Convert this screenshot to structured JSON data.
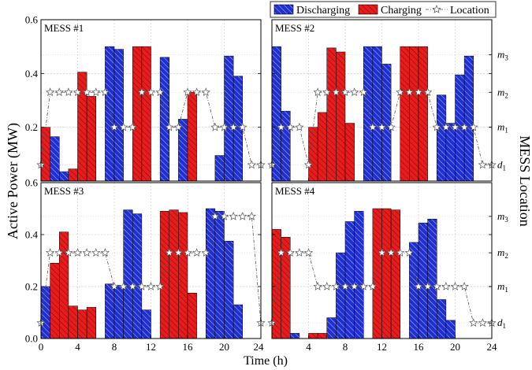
{
  "figure": {
    "ylabel_left": "Active Power (MW)",
    "ylabel_right": "MESS Location",
    "xlabel": "Time (h)",
    "legend": [
      {
        "key": "discharging",
        "label": "Discharging"
      },
      {
        "key": "charging",
        "label": "Charging"
      },
      {
        "key": "location",
        "label": "Location"
      }
    ]
  },
  "colors": {
    "discharging": "#1f2fd0",
    "charging": "#e81c1c",
    "location_line": "#555555",
    "grid": "#c8c8c8"
  },
  "chart_data": [
    {
      "type": "bar",
      "title": "MESS #1",
      "xlim": [
        0,
        24
      ],
      "ylim": [
        0,
        0.6
      ],
      "xticks": [
        0,
        4,
        8,
        12,
        16,
        20,
        24
      ],
      "yticks": [
        0.0,
        0.2,
        0.4,
        0.6
      ],
      "location_ticks": [
        "d1",
        "m1",
        "m2",
        "m3"
      ],
      "hours": [
        1,
        2,
        3,
        4,
        5,
        6,
        7,
        8,
        9,
        10,
        11,
        12,
        13,
        14,
        15,
        16,
        17,
        18,
        19,
        20,
        21,
        22,
        23,
        24
      ],
      "power": [
        0.2,
        0.165,
        0.035,
        0.045,
        0.405,
        0.315,
        0,
        0.5,
        0.49,
        0,
        0.5,
        0.5,
        0,
        0.46,
        0,
        0.23,
        0.33,
        0,
        0,
        0.095,
        0.465,
        0.39,
        0,
        0
      ],
      "mode": [
        "c",
        "d",
        "d",
        "c",
        "c",
        "c",
        "",
        "d",
        "d",
        "",
        "c",
        "c",
        "",
        "d",
        "",
        "d",
        "c",
        "",
        "",
        "d",
        "d",
        "d",
        "",
        ""
      ],
      "location": [
        [
          0,
          0.06
        ],
        [
          1,
          0.33
        ],
        [
          2,
          0.33
        ],
        [
          3,
          0.33
        ],
        [
          4,
          0.33
        ],
        [
          5,
          0.33
        ],
        [
          6,
          0.33
        ],
        [
          7,
          0.33
        ],
        [
          8,
          0.2
        ],
        [
          9,
          0.2
        ],
        [
          10,
          0.2
        ],
        [
          11,
          0.33
        ],
        [
          12,
          0.33
        ],
        [
          13,
          0.33
        ],
        [
          14,
          0.2
        ],
        [
          15,
          0.2
        ],
        [
          16,
          0.33
        ],
        [
          17,
          0.33
        ],
        [
          18,
          0.33
        ],
        [
          19,
          0.2
        ],
        [
          20,
          0.2
        ],
        [
          21,
          0.2
        ],
        [
          22,
          0.2
        ],
        [
          23,
          0.06
        ],
        [
          24,
          0.06
        ]
      ]
    },
    {
      "type": "bar",
      "title": "MESS #2",
      "xlim": [
        0,
        24
      ],
      "ylim": [
        0,
        0.6
      ],
      "xticks": [
        0,
        4,
        8,
        12,
        16,
        20,
        24
      ],
      "yticks": [
        0.0,
        0.2,
        0.4,
        0.6
      ],
      "location_ticks": [
        "d1",
        "m1",
        "m2",
        "m3"
      ],
      "hours": [
        1,
        2,
        3,
        4,
        5,
        6,
        7,
        8,
        9,
        10,
        11,
        12,
        13,
        14,
        15,
        16,
        17,
        18,
        19,
        20,
        21,
        22,
        23,
        24
      ],
      "power": [
        0.5,
        0.26,
        0,
        0,
        0.2,
        0.255,
        0.495,
        0.48,
        0.215,
        0,
        0.5,
        0.5,
        0.435,
        0,
        0.5,
        0.5,
        0.5,
        0,
        0.32,
        0.215,
        0.395,
        0.465,
        0,
        0
      ],
      "mode": [
        "d",
        "d",
        "",
        "",
        "c",
        "c",
        "c",
        "c",
        "c",
        "",
        "d",
        "d",
        "d",
        "",
        "c",
        "c",
        "c",
        "",
        "d",
        "d",
        "d",
        "d",
        "",
        ""
      ],
      "location": [
        [
          0,
          0.06
        ],
        [
          1,
          0.2
        ],
        [
          2,
          0.2
        ],
        [
          3,
          0.2
        ],
        [
          4,
          0.06
        ],
        [
          5,
          0.33
        ],
        [
          6,
          0.33
        ],
        [
          7,
          0.33
        ],
        [
          8,
          0.33
        ],
        [
          9,
          0.33
        ],
        [
          10,
          0.33
        ],
        [
          11,
          0.2
        ],
        [
          12,
          0.2
        ],
        [
          13,
          0.2
        ],
        [
          14,
          0.33
        ],
        [
          15,
          0.33
        ],
        [
          16,
          0.33
        ],
        [
          17,
          0.33
        ],
        [
          18,
          0.2
        ],
        [
          19,
          0.2
        ],
        [
          20,
          0.2
        ],
        [
          21,
          0.2
        ],
        [
          22,
          0.2
        ],
        [
          23,
          0.06
        ],
        [
          24,
          0.06
        ]
      ]
    },
    {
      "type": "bar",
      "title": "MESS #3",
      "xlim": [
        0,
        24
      ],
      "ylim": [
        0,
        0.6
      ],
      "xticks": [
        0,
        4,
        8,
        12,
        16,
        20,
        24
      ],
      "yticks": [
        0.0,
        0.2,
        0.4,
        0.6
      ],
      "location_ticks": [
        "d1",
        "m1",
        "m2",
        "m3"
      ],
      "hours": [
        1,
        2,
        3,
        4,
        5,
        6,
        7,
        8,
        9,
        10,
        11,
        12,
        13,
        14,
        15,
        16,
        17,
        18,
        19,
        20,
        21,
        22,
        23,
        24
      ],
      "power": [
        0.2,
        0.29,
        0.41,
        0.125,
        0.11,
        0.12,
        0,
        0.21,
        0.205,
        0.495,
        0.48,
        0.11,
        0,
        0.49,
        0.495,
        0.485,
        0.175,
        0,
        0.5,
        0.49,
        0.375,
        0.13,
        0,
        0
      ],
      "mode": [
        "d",
        "c",
        "c",
        "c",
        "c",
        "c",
        "",
        "d",
        "d",
        "d",
        "d",
        "d",
        "",
        "c",
        "c",
        "c",
        "c",
        "",
        "d",
        "d",
        "d",
        "d",
        "",
        ""
      ],
      "location": [
        [
          0,
          0.06
        ],
        [
          1,
          0.33
        ],
        [
          2,
          0.33
        ],
        [
          3,
          0.33
        ],
        [
          4,
          0.33
        ],
        [
          5,
          0.33
        ],
        [
          6,
          0.33
        ],
        [
          7,
          0.33
        ],
        [
          8,
          0.2
        ],
        [
          9,
          0.2
        ],
        [
          10,
          0.2
        ],
        [
          11,
          0.2
        ],
        [
          12,
          0.2
        ],
        [
          13,
          0.2
        ],
        [
          14,
          0.33
        ],
        [
          15,
          0.33
        ],
        [
          16,
          0.33
        ],
        [
          17,
          0.33
        ],
        [
          18,
          0.33
        ],
        [
          19,
          0.47
        ],
        [
          20,
          0.47
        ],
        [
          21,
          0.47
        ],
        [
          22,
          0.47
        ],
        [
          23,
          0.47
        ],
        [
          24,
          0.06
        ]
      ]
    },
    {
      "type": "bar",
      "title": "MESS #4",
      "xlim": [
        0,
        24
      ],
      "ylim": [
        0,
        0.6
      ],
      "xticks": [
        0,
        4,
        8,
        12,
        16,
        20,
        24
      ],
      "yticks": [
        0.0,
        0.2,
        0.4,
        0.6
      ],
      "location_ticks": [
        "d1",
        "m1",
        "m2",
        "m3"
      ],
      "hours": [
        1,
        2,
        3,
        4,
        5,
        6,
        7,
        8,
        9,
        10,
        11,
        12,
        13,
        14,
        15,
        16,
        17,
        18,
        19,
        20,
        21,
        22,
        23,
        24
      ],
      "power": [
        0.42,
        0.39,
        0.02,
        0,
        0.02,
        0.02,
        0.08,
        0.33,
        0.45,
        0.49,
        0,
        0.5,
        0.5,
        0.495,
        0,
        0.37,
        0.445,
        0.46,
        0.15,
        0.07,
        0,
        0,
        0,
        0
      ],
      "mode": [
        "c",
        "c",
        "d",
        "",
        "c",
        "c",
        "d",
        "d",
        "d",
        "d",
        "",
        "c",
        "c",
        "c",
        "",
        "d",
        "d",
        "d",
        "d",
        "d",
        "",
        "",
        "",
        ""
      ],
      "location": [
        [
          0,
          0.06
        ],
        [
          1,
          0.33
        ],
        [
          2,
          0.33
        ],
        [
          3,
          0.33
        ],
        [
          4,
          0.33
        ],
        [
          5,
          0.2
        ],
        [
          6,
          0.2
        ],
        [
          7,
          0.2
        ],
        [
          8,
          0.2
        ],
        [
          9,
          0.2
        ],
        [
          10,
          0.2
        ],
        [
          11,
          0.2
        ],
        [
          12,
          0.33
        ],
        [
          13,
          0.33
        ],
        [
          14,
          0.33
        ],
        [
          15,
          0.33
        ],
        [
          16,
          0.2
        ],
        [
          17,
          0.2
        ],
        [
          18,
          0.2
        ],
        [
          19,
          0.2
        ],
        [
          20,
          0.2
        ],
        [
          21,
          0.2
        ],
        [
          22,
          0.06
        ],
        [
          23,
          0.06
        ],
        [
          24,
          0.06
        ]
      ]
    }
  ]
}
